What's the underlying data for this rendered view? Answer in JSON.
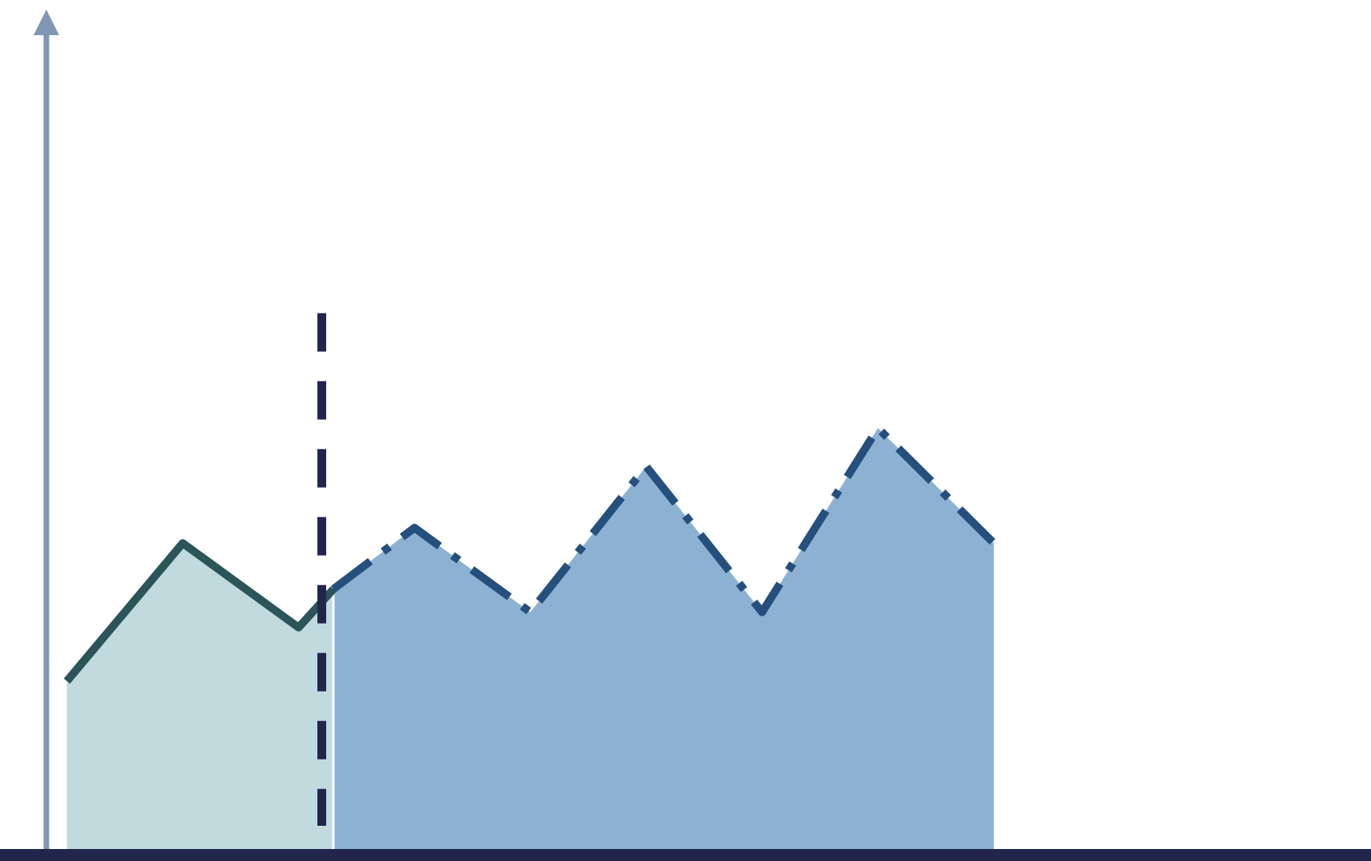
{
  "chart_data": {
    "type": "area",
    "title": "",
    "xlabel": "",
    "ylabel": "",
    "x": [
      0,
      1,
      2,
      3,
      4,
      5,
      6,
      7,
      8,
      9,
      10,
      11
    ],
    "xlim": [
      -0.17,
      11.0
    ],
    "ylim": [
      0,
      10
    ],
    "grid": false,
    "legend": "none",
    "marker_x": 2.2,
    "marker_top": 7.0,
    "series": [
      {
        "style": "solid",
        "fill": "#c0dade",
        "stroke": "#2b5558",
        "points": [
          [
            0,
            2.2
          ],
          [
            1,
            4.0
          ],
          [
            2,
            2.9
          ],
          [
            2.3,
            3.4
          ]
        ]
      },
      {
        "style": "dashdot",
        "fill": "#8cb1d2",
        "stroke": "#254f7c",
        "points": [
          [
            2.3,
            3.4
          ],
          [
            3,
            4.2
          ],
          [
            4,
            3.1
          ],
          [
            5,
            5.0
          ],
          [
            6,
            3.1
          ],
          [
            7,
            5.5
          ],
          [
            8,
            4.0
          ]
        ]
      }
    ],
    "colors": {
      "axis": "#8096b4",
      "baseline": "#22264d",
      "marker": "#22264d"
    }
  }
}
